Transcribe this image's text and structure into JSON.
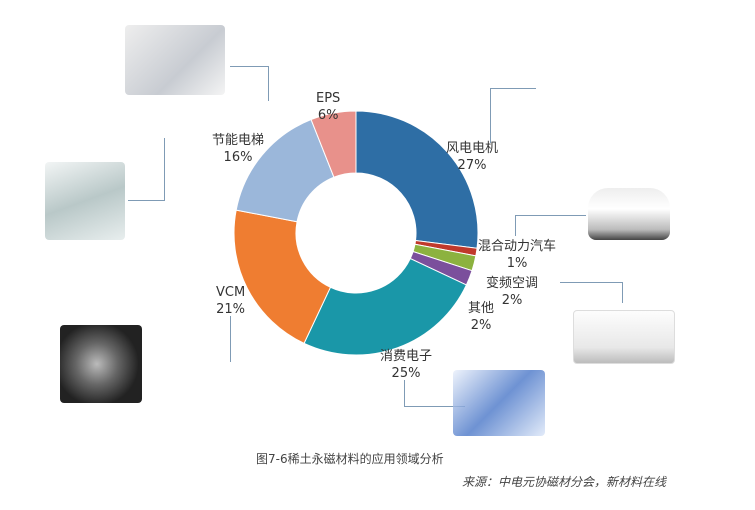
{
  "chart_data": {
    "type": "pie",
    "donut": true,
    "categories": [
      "风电电机",
      "混合动力汽车",
      "变频空调",
      "其他",
      "消费电子",
      "VCM",
      "节能电梯",
      "EPS"
    ],
    "values": [
      27,
      1,
      2,
      2,
      25,
      21,
      16,
      6
    ],
    "labels": [
      "27%",
      "1%",
      "2%",
      "2%",
      "25%",
      "21%",
      "16%",
      "6%"
    ],
    "colors": [
      "#2e6ea5",
      "#c0392b",
      "#8cb23f",
      "#7b4f9c",
      "#1a97a8",
      "#ef7d31",
      "#9bb7da",
      "#e8918b"
    ],
    "start": "top, clockwise"
  },
  "caption": "图7-6稀土永磁材料的应用领域分析",
  "source": "来源：中电元协磁材分会，新材料在线",
  "images": [
    "steering-system",
    "escalator",
    "hard-disk",
    "car",
    "air-conditioner",
    "electronics"
  ]
}
